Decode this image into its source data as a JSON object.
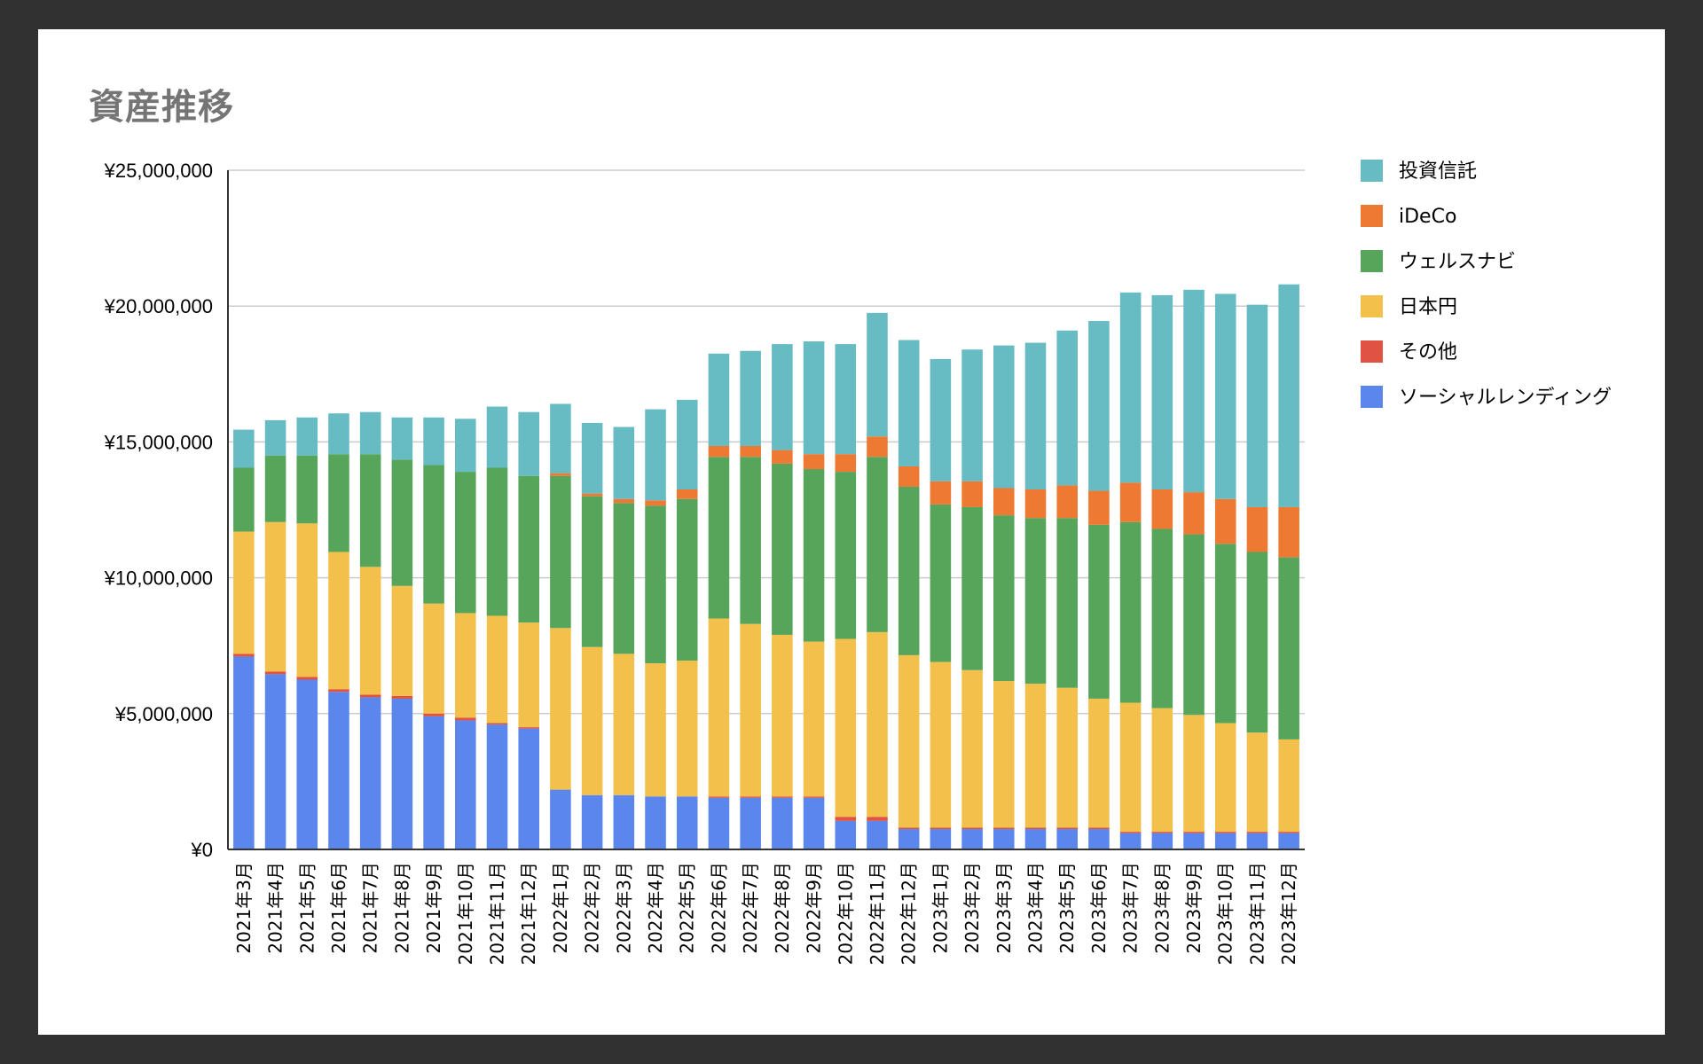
{
  "chart_data": {
    "type": "bar",
    "stacked": true,
    "title": "資産推移",
    "xlabel": "",
    "ylabel": "",
    "ylim": [
      0,
      25000000
    ],
    "yticks": [
      0,
      5000000,
      10000000,
      15000000,
      20000000,
      25000000
    ],
    "ytick_labels": [
      "¥0",
      "¥5,000,000",
      "¥10,000,000",
      "¥15,000,000",
      "¥20,000,000",
      "¥25,000,000"
    ],
    "grid": true,
    "legend_position": "right",
    "categories": [
      "2021年3月",
      "2021年4月",
      "2021年5月",
      "2021年6月",
      "2021年7月",
      "2021年8月",
      "2021年9月",
      "2021年10月",
      "2021年11月",
      "2021年12月",
      "2022年1月",
      "2022年2月",
      "2022年3月",
      "2022年4月",
      "2022年5月",
      "2022年6月",
      "2022年7月",
      "2022年8月",
      "2022年9月",
      "2022年10月",
      "2022年11月",
      "2022年12月",
      "2023年1月",
      "2023年2月",
      "2023年3月",
      "2023年4月",
      "2023年5月",
      "2023年6月",
      "2023年7月",
      "2023年8月",
      "2023年9月",
      "2023年10月",
      "2023年11月",
      "2023年12月"
    ],
    "series": [
      {
        "name": "ソーシャルレンディング",
        "color": "#5b87ed",
        "values": [
          7100000,
          6450000,
          6250000,
          5800000,
          5600000,
          5550000,
          4900000,
          4750000,
          4600000,
          4450000,
          2200000,
          2000000,
          2000000,
          1950000,
          1950000,
          1900000,
          1900000,
          1900000,
          1900000,
          1050000,
          1050000,
          750000,
          750000,
          750000,
          750000,
          750000,
          750000,
          750000,
          600000,
          600000,
          600000,
          600000,
          600000,
          600000
        ]
      },
      {
        "name": "その他",
        "color": "#e05241",
        "values": [
          100000,
          100000,
          100000,
          100000,
          100000,
          100000,
          100000,
          100000,
          50000,
          50000,
          0,
          0,
          0,
          0,
          0,
          50000,
          50000,
          50000,
          50000,
          150000,
          150000,
          50000,
          50000,
          50000,
          50000,
          50000,
          50000,
          50000,
          50000,
          50000,
          50000,
          50000,
          50000,
          50000
        ]
      },
      {
        "name": "日本円",
        "color": "#f3c14b",
        "values": [
          4500000,
          5500000,
          5650000,
          5050000,
          4700000,
          4050000,
          4050000,
          3850000,
          3950000,
          3850000,
          5950000,
          5450000,
          5200000,
          4900000,
          5000000,
          6550000,
          6350000,
          5950000,
          5700000,
          6550000,
          6800000,
          6350000,
          6100000,
          5800000,
          5400000,
          5300000,
          5150000,
          4750000,
          4750000,
          4550000,
          4300000,
          4000000,
          3650000,
          3400000
        ]
      },
      {
        "name": "ウェルスナビ",
        "color": "#57a55b",
        "values": [
          2350000,
          2450000,
          2500000,
          3600000,
          4150000,
          4650000,
          5100000,
          5200000,
          5450000,
          5400000,
          5600000,
          5550000,
          5550000,
          5800000,
          5950000,
          5950000,
          6150000,
          6300000,
          6350000,
          6150000,
          6450000,
          6200000,
          5800000,
          6000000,
          6100000,
          6100000,
          6250000,
          6400000,
          6650000,
          6600000,
          6650000,
          6600000,
          6650000,
          6700000
        ]
      },
      {
        "name": "iDeCo",
        "color": "#ed7932",
        "values": [
          0,
          0,
          0,
          0,
          0,
          0,
          0,
          0,
          0,
          0,
          100000,
          100000,
          150000,
          200000,
          350000,
          400000,
          400000,
          500000,
          550000,
          650000,
          750000,
          750000,
          850000,
          950000,
          1000000,
          1050000,
          1200000,
          1250000,
          1450000,
          1450000,
          1550000,
          1650000,
          1650000,
          1850000
        ]
      },
      {
        "name": "投資信託",
        "color": "#67bbc3",
        "values": [
          1400000,
          1300000,
          1400000,
          1500000,
          1550000,
          1550000,
          1750000,
          1950000,
          2250000,
          2350000,
          2550000,
          2600000,
          2650000,
          3350000,
          3300000,
          3400000,
          3500000,
          3900000,
          4150000,
          4050000,
          4550000,
          4650000,
          4500000,
          4850000,
          5250000,
          5400000,
          5700000,
          6250000,
          7000000,
          7150000,
          7450000,
          7550000,
          7450000,
          8200000
        ]
      }
    ]
  }
}
